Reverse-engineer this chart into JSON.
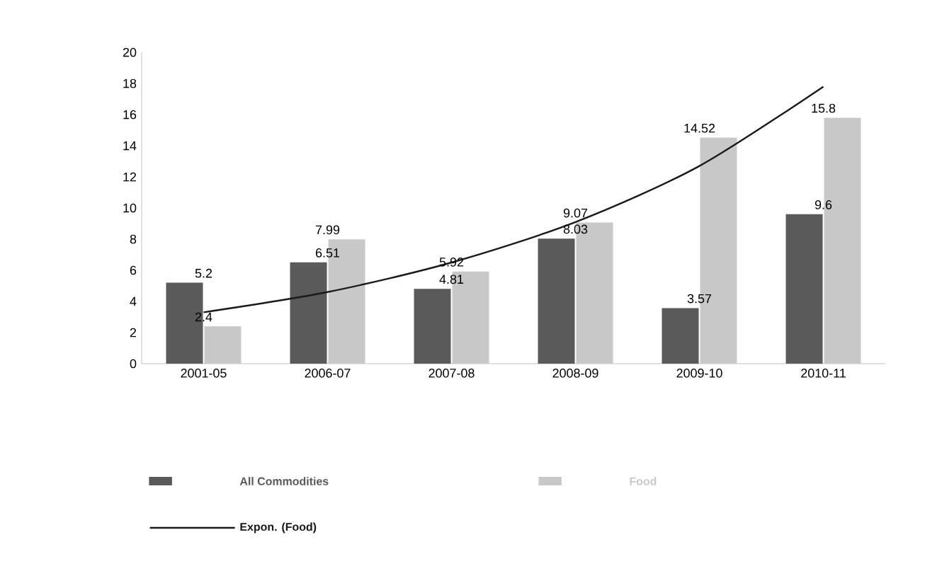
{
  "chart_data": {
    "type": "bar",
    "categories": [
      "2001-05",
      "2006-07",
      "2007-08",
      "2008-09",
      "2009-10",
      "2010-11"
    ],
    "series": [
      {
        "name": "All Commodities",
        "color": "#5a5a5a",
        "values": [
          5.2,
          6.51,
          4.81,
          8.03,
          3.57,
          9.6
        ],
        "value_labels": [
          "5.2",
          "6.51",
          "4.81",
          "8.03",
          "3.57",
          "9.6"
        ]
      },
      {
        "name": "Food",
        "color": "#c8c8c8",
        "values": [
          2.4,
          7.99,
          5.92,
          9.07,
          14.52,
          15.8
        ],
        "value_labels": [
          "2.4",
          "7.99",
          "5.92",
          "9.07",
          "14.52",
          "15.8"
        ]
      },
      {
        "name": "Expon. (Food)",
        "type": "line",
        "color": "#1a1a1a",
        "values": [
          3.3,
          4.6,
          6.5,
          9.1,
          12.7,
          17.8
        ]
      }
    ],
    "ylim": [
      0,
      20
    ],
    "yticks": [
      0,
      2,
      4,
      6,
      8,
      10,
      12,
      14,
      16,
      18,
      20
    ],
    "legend": "bottom"
  }
}
